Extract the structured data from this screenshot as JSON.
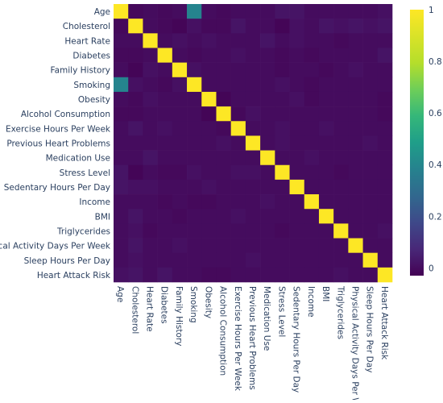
{
  "chart_data": {
    "type": "heatmap",
    "variables": [
      "Age",
      "Cholesterol",
      "Heart Rate",
      "Diabetes",
      "Family History",
      "Smoking",
      "Obesity",
      "Alcohol Consumption",
      "Exercise Hours Per Week",
      "Previous Heart Problems",
      "Medication Use",
      "Stress Level",
      "Sedentary Hours Per Day",
      "Income",
      "BMI",
      "Triglycerides",
      "Physical Activity Days Per Week",
      "Sleep Hours Per Day",
      "Heart Attack Risk"
    ],
    "z": [
      [
        1.0,
        -0.01,
        -0.0,
        -0.01,
        0.0,
        0.39,
        -0.0,
        -0.01,
        0.0,
        0.0,
        -0.0,
        0.02,
        0.02,
        -0.0,
        -0.0,
        0.0,
        0.0,
        -0.0,
        0.01
      ],
      [
        -0.01,
        1.0,
        0.0,
        -0.01,
        -0.02,
        0.01,
        -0.01,
        -0.01,
        0.02,
        0.0,
        0.0,
        -0.02,
        0.01,
        -0.0,
        0.02,
        0.01,
        0.02,
        0.01,
        0.02
      ],
      [
        -0.0,
        0.0,
        1.0,
        -0.0,
        0.01,
        0.0,
        0.01,
        0.0,
        0.0,
        0.0,
        0.02,
        0.0,
        0.01,
        0.0,
        0.0,
        -0.01,
        -0.0,
        0.0,
        -0.0
      ],
      [
        -0.01,
        -0.01,
        -0.0,
        1.0,
        0.0,
        -0.01,
        -0.0,
        0.0,
        0.01,
        -0.0,
        -0.0,
        -0.01,
        0.0,
        -0.01,
        0.0,
        -0.0,
        -0.0,
        -0.0,
        0.02
      ],
      [
        0.0,
        -0.02,
        0.01,
        0.0,
        1.0,
        0.01,
        0.0,
        -0.0,
        0.0,
        -0.0,
        0.0,
        -0.01,
        0.0,
        0.0,
        -0.01,
        0.0,
        0.01,
        0.0,
        -0.0
      ],
      [
        0.39,
        0.01,
        0.0,
        -0.01,
        0.01,
        1.0,
        0.0,
        0.0,
        -0.0,
        0.0,
        -0.0,
        0.01,
        0.0,
        -0.01,
        -0.0,
        0.0,
        0.0,
        -0.0,
        -0.0
      ],
      [
        -0.0,
        -0.01,
        0.01,
        -0.0,
        0.0,
        0.0,
        1.0,
        -0.02,
        0.0,
        0.0,
        -0.0,
        0.0,
        0.01,
        -0.01,
        -0.0,
        0.0,
        0.0,
        0.0,
        -0.01
      ],
      [
        -0.01,
        -0.01,
        0.0,
        0.0,
        -0.0,
        0.0,
        -0.02,
        1.0,
        -0.01,
        0.01,
        0.0,
        -0.0,
        -0.0,
        0.0,
        -0.0,
        -0.0,
        0.0,
        -0.0,
        -0.01
      ],
      [
        0.0,
        0.02,
        0.0,
        0.01,
        0.0,
        -0.0,
        0.0,
        -0.01,
        1.0,
        0.0,
        0.0,
        0.01,
        0.0,
        0.0,
        0.01,
        0.0,
        0.0,
        0.0,
        0.0
      ],
      [
        0.0,
        0.0,
        0.0,
        -0.0,
        -0.0,
        0.0,
        0.0,
        0.01,
        0.0,
        1.0,
        0.0,
        0.01,
        0.0,
        -0.0,
        0.0,
        0.0,
        -0.0,
        0.01,
        0.0
      ],
      [
        -0.0,
        0.0,
        0.02,
        -0.0,
        0.0,
        -0.0,
        -0.0,
        0.0,
        0.0,
        0.0,
        1.0,
        -0.0,
        0.0,
        0.01,
        0.0,
        0.0,
        -0.0,
        0.0,
        0.0
      ],
      [
        0.02,
        -0.02,
        0.0,
        -0.01,
        -0.01,
        0.01,
        0.0,
        -0.0,
        0.01,
        0.01,
        -0.0,
        1.0,
        0.0,
        -0.0,
        0.0,
        -0.01,
        0.0,
        0.0,
        -0.0
      ],
      [
        0.02,
        0.01,
        0.01,
        0.0,
        0.0,
        0.0,
        0.01,
        -0.0,
        0.0,
        0.0,
        0.0,
        0.0,
        1.0,
        0.0,
        0.0,
        0.0,
        0.0,
        0.0,
        0.0
      ],
      [
        -0.0,
        -0.0,
        0.0,
        -0.01,
        0.0,
        -0.01,
        -0.01,
        0.0,
        0.0,
        -0.0,
        0.01,
        -0.0,
        0.0,
        1.0,
        0.0,
        0.0,
        0.0,
        -0.0,
        0.0
      ],
      [
        -0.0,
        0.02,
        0.0,
        0.0,
        -0.01,
        -0.0,
        -0.0,
        -0.0,
        0.01,
        0.0,
        0.0,
        0.0,
        0.0,
        0.0,
        1.0,
        0.0,
        0.0,
        0.0,
        0.0
      ],
      [
        0.0,
        0.01,
        -0.01,
        -0.0,
        0.0,
        0.0,
        0.0,
        -0.0,
        0.0,
        0.0,
        0.0,
        -0.01,
        0.0,
        0.0,
        0.0,
        1.0,
        0.0,
        0.0,
        0.01
      ],
      [
        0.0,
        0.02,
        -0.0,
        -0.0,
        0.01,
        0.0,
        0.0,
        0.0,
        0.0,
        -0.0,
        -0.0,
        0.0,
        0.0,
        0.0,
        0.0,
        0.0,
        1.0,
        0.0,
        -0.0
      ],
      [
        -0.0,
        0.01,
        0.0,
        -0.0,
        0.0,
        -0.0,
        0.0,
        -0.0,
        0.0,
        0.01,
        0.0,
        0.0,
        0.0,
        -0.0,
        0.0,
        0.0,
        0.0,
        1.0,
        -0.0
      ],
      [
        0.01,
        0.02,
        -0.0,
        0.02,
        -0.0,
        -0.0,
        -0.01,
        -0.01,
        0.0,
        0.0,
        0.0,
        -0.0,
        0.0,
        0.0,
        0.0,
        0.01,
        -0.0,
        -0.0,
        1.0
      ]
    ],
    "zmin": -0.03,
    "zmax": 1.0,
    "colorscale": "viridis",
    "colorbar": {
      "ticks": [
        0,
        0.2,
        0.4,
        0.6,
        0.8,
        1
      ],
      "tick_labels": [
        "0",
        "0.2",
        "0.4",
        "0.6",
        "0.8",
        "1"
      ]
    },
    "title": "",
    "xlabel": "",
    "ylabel": ""
  }
}
